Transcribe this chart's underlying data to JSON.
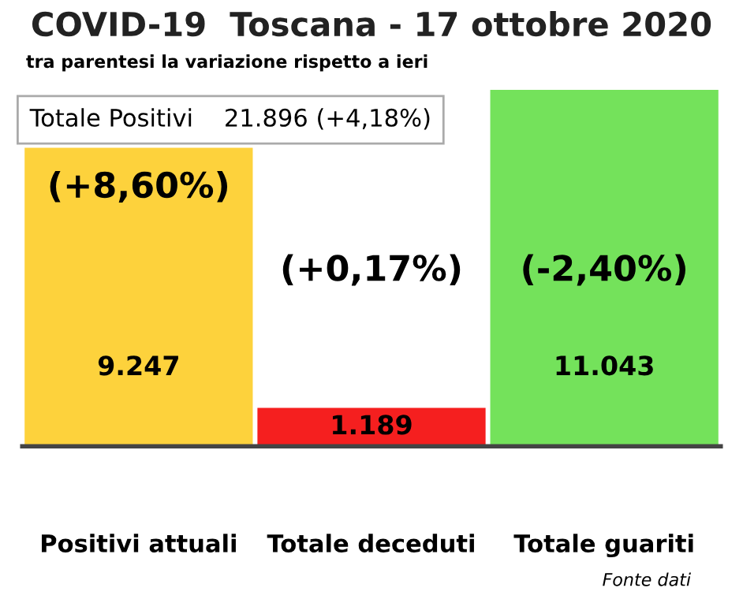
{
  "chart_data": {
    "type": "bar",
    "title": "COVID-19  Toscana - 17 ottobre 2020",
    "subtitle": "tra parentesi la variazione rispetto a ieri",
    "categories": [
      "Positivi attuali",
      "Totale deceduti",
      "Totale guariti"
    ],
    "values": [
      9247,
      1189,
      11043
    ],
    "colors": [
      "#fdd23c",
      "#f51f1f",
      "#74e25b"
    ],
    "value_labels": [
      "9.247",
      "1.189",
      "11.043"
    ],
    "tick_labels": "x",
    "annotations": [
      "Totale Positivi    21.896 (+4,18%)",
      "(+8,60%)",
      "(+0,17%)",
      "(-2,40%)",
      "Fonte dati"
    ]
  }
}
